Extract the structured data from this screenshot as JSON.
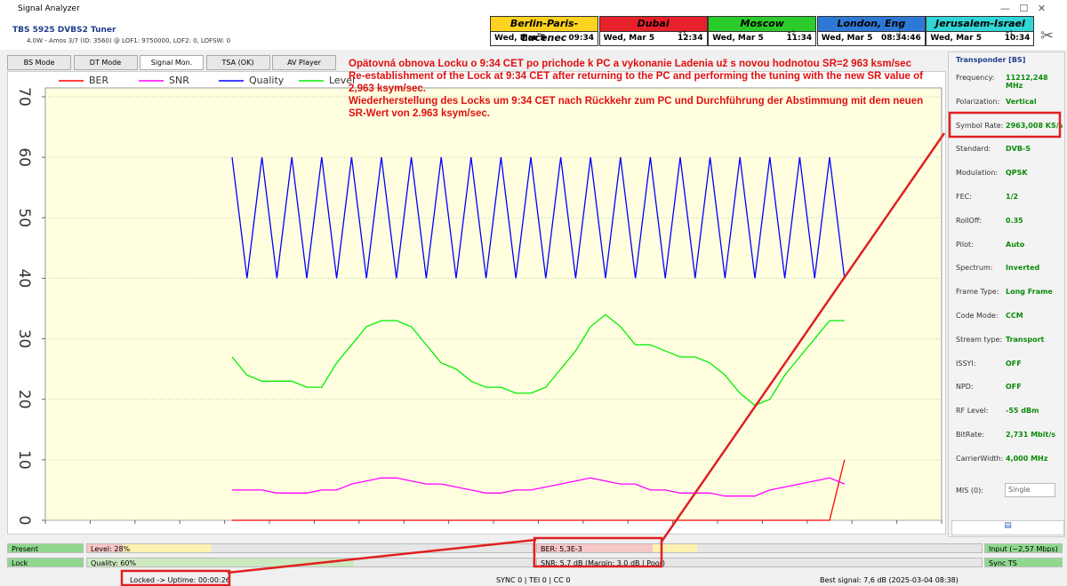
{
  "window": {
    "title": "Signal Analyzer",
    "device": "TBS 5925 DVBS2 Tuner",
    "details": "4.0W - Amos 3/7 (ID: 3560) @ LOF1: 9750000, LOF2: 0, LOFSW: 0"
  },
  "clocks": [
    {
      "city": "Berlin-Paris-Lučenec",
      "date": "Wed, Mar 5",
      "time": "09:34"
    },
    {
      "city": "Dubai",
      "date": "Wed, Mar 5",
      "offset": "+3",
      "time": "12:34"
    },
    {
      "city": "Moscow",
      "date": "Wed, Mar 5",
      "offset": "+2",
      "time": "11:34"
    },
    {
      "city": "London, Eng",
      "date": "Wed, Mar 5",
      "offset": "-1",
      "time": "08:34:46"
    },
    {
      "city": "Jerusalem-Israel",
      "date": "Wed, Mar 5",
      "offset": "+1",
      "time": "10:34"
    }
  ],
  "tabs": [
    "BS Mode",
    "DT Mode",
    "Signal Mon.",
    "TSA (OK)",
    "AV Player"
  ],
  "annotation": [
    "Opätovná obnova Locku o 9:34 CET po prichode k PC a vykonanie Ladenia už s novou hodnotou SR=2 963 ksm/sec",
    "Re-establishment of the Lock at 9:34 CET after returning to the PC and performing the tuning with the new SR value of 2,963 ksym/sec.",
    "Wiederherstellung des Locks um 9:34 CET nach Rückkehr zum PC und Durchführung der Abstimmung mit dem neuen SR-Wert von 2.963 ksym/sec."
  ],
  "chart_data": {
    "type": "line",
    "ylim": [
      0,
      70
    ],
    "yticks": [
      0,
      10,
      20,
      30,
      40,
      50,
      60,
      70
    ],
    "grid": true,
    "legend": "top-left",
    "categories": [
      null,
      null,
      null,
      null,
      null,
      null,
      null,
      null,
      null,
      null,
      null,
      null,
      null,
      null,
      null,
      null,
      null,
      null,
      null,
      null,
      null,
      null,
      null,
      null,
      null,
      null,
      null,
      null,
      null,
      null,
      null,
      null,
      null,
      null,
      null,
      null,
      null,
      null,
      null,
      null,
      null,
      null,
      null,
      null,
      null,
      null,
      null,
      null,
      null,
      null,
      null,
      null,
      null,
      null,
      null,
      null,
      null,
      null,
      null,
      null
    ],
    "series": [
      {
        "name": "BER",
        "color": "#ff0000",
        "values": [
          null,
          null,
          null,
          null,
          null,
          null,
          null,
          null,
          null,
          null,
          null,
          null,
          0,
          0,
          0,
          0,
          0,
          0,
          0,
          0,
          0,
          0,
          0,
          0,
          0,
          0,
          0,
          0,
          0,
          0,
          0,
          0,
          0,
          0,
          0,
          0,
          0,
          0,
          0,
          0,
          0,
          0,
          0,
          0,
          0,
          0,
          0,
          0,
          0,
          0,
          0,
          0,
          0,
          10,
          null,
          null,
          null,
          null,
          null,
          null
        ]
      },
      {
        "name": "SNR",
        "color": "#ff00ff",
        "values": [
          null,
          null,
          null,
          null,
          null,
          null,
          null,
          null,
          null,
          null,
          null,
          null,
          5,
          5,
          5,
          4.5,
          4.5,
          4.5,
          5,
          5,
          6,
          6.5,
          7,
          7,
          6.5,
          6,
          6,
          5.5,
          5,
          4.5,
          4.5,
          5,
          5,
          5.5,
          6,
          6.5,
          7,
          6.5,
          6,
          6,
          5,
          5,
          4.5,
          4.5,
          4.5,
          4,
          4,
          4,
          5,
          5.5,
          6,
          6.5,
          7,
          6,
          null,
          null,
          null,
          null,
          null,
          null
        ]
      },
      {
        "name": "Quality",
        "color": "#0000ff",
        "values": [
          null,
          null,
          null,
          null,
          null,
          null,
          null,
          null,
          null,
          null,
          null,
          null,
          60,
          40,
          60,
          40,
          60,
          40,
          60,
          40,
          60,
          40,
          60,
          40,
          60,
          40,
          60,
          40,
          60,
          40,
          60,
          40,
          60,
          40,
          60,
          40,
          60,
          40,
          60,
          40,
          60,
          40,
          60,
          40,
          60,
          40,
          60,
          40,
          60,
          40,
          60,
          40,
          60,
          40,
          null,
          null,
          null,
          null,
          null,
          null
        ]
      },
      {
        "name": "Level",
        "color": "#00ee00",
        "values": [
          null,
          null,
          null,
          null,
          null,
          null,
          null,
          null,
          null,
          null,
          null,
          null,
          27,
          24,
          23,
          23,
          23,
          22,
          22,
          26,
          29,
          32,
          33,
          33,
          32,
          29,
          26,
          25,
          23,
          22,
          22,
          21,
          21,
          22,
          25,
          28,
          32,
          34,
          32,
          29,
          29,
          28,
          27,
          27,
          26,
          24,
          21,
          19,
          20,
          24,
          27,
          30,
          33,
          33,
          null,
          null,
          null,
          null,
          null,
          null
        ]
      }
    ]
  },
  "transponder": {
    "title": "Transponder [BS]",
    "fields": [
      {
        "label": "Frequency:",
        "value": "11212,248 MHz"
      },
      {
        "label": "Polarization:",
        "value": "Vertical"
      },
      {
        "label": "Symbol Rate:",
        "value": "2963,008 KS/s"
      },
      {
        "label": "Standard:",
        "value": "DVB-S"
      },
      {
        "label": "Modulation:",
        "value": "QPSK"
      },
      {
        "label": "FEC:",
        "value": "1/2"
      },
      {
        "label": "RollOff:",
        "value": "0.35"
      },
      {
        "label": "Pilot:",
        "value": "Auto"
      },
      {
        "label": "Spectrum:",
        "value": "Inverted"
      },
      {
        "label": "Frame Type:",
        "value": "Long Frame"
      },
      {
        "label": "Code Mode:",
        "value": "CCM"
      },
      {
        "label": "Stream type:",
        "value": "Transport"
      },
      {
        "label": "ISSYI:",
        "value": "OFF"
      },
      {
        "label": "NPD:",
        "value": "OFF"
      },
      {
        "label": "RF Level:",
        "value": "-55 dBm"
      },
      {
        "label": "BitRate:",
        "value": "2,731 Mbit/s"
      },
      {
        "label": "CarrierWidth:",
        "value": "4,000 MHz"
      }
    ],
    "mis_label": "MIS (0):",
    "mis_value": "Single"
  },
  "status": {
    "present": "Present",
    "lock": "Lock",
    "level": "Level: 28%",
    "quality": "Quality: 60%",
    "ber": "BER: 5,3E-3",
    "snr": "SNR: 5,7 dB (Margin: 3,0 dB | Poor)",
    "input": "Input (~2,57 Mbps)",
    "sync": "Sync TS",
    "uptime": "Locked -> Uptime: 00:00:26",
    "counters": "SYNC 0 | TEI 0 | CC 0",
    "best": "Best signal: 7,6 dB (2025-03-04 08:38)"
  }
}
